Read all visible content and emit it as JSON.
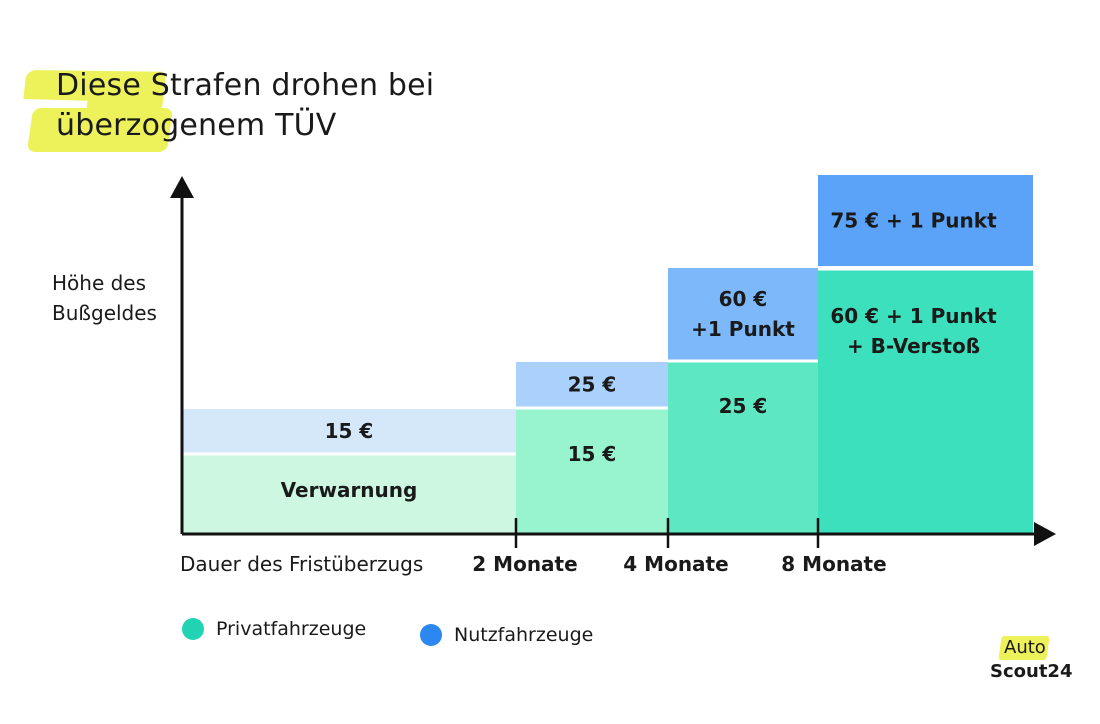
{
  "title": {
    "line1": "Diese Strafen drohen bei",
    "line2": "überzogenem TÜV"
  },
  "chart_data": {
    "type": "bar",
    "ylabel": "Höhe des Bußgeldes",
    "xlabel": "Dauer des Fristüberzugs",
    "x_ticks": [
      "2 Monate",
      "4 Monate",
      "8 Monate"
    ],
    "segments": [
      {
        "range": "0-2",
        "private": "Verwarnung",
        "commercial": "15 €"
      },
      {
        "range": "2-4",
        "private": "15 €",
        "commercial": "25 €"
      },
      {
        "range": "4-8",
        "private": "25 €",
        "commercial": [
          "60 €",
          "+1 Punkt"
        ]
      },
      {
        "range": "8+",
        "private": [
          "60 € + 1 Punkt",
          "+ B-Verstoß"
        ],
        "commercial": "75 € + 1 Punkt"
      }
    ],
    "series": [
      {
        "name": "Privatfahrzeuge",
        "colors": [
          "#cdf7e1",
          "#98f4cf",
          "#5ee8c2",
          "#3ce0bd"
        ]
      },
      {
        "name": "Nutzfahrzeuge",
        "colors": [
          "#d5e8fa",
          "#a9d1fb",
          "#7db9fa",
          "#5aa3f8"
        ]
      }
    ]
  },
  "legend": {
    "private": {
      "label": "Privatfahrzeuge",
      "color": "#1fd3b3"
    },
    "commercial": {
      "label": "Nutzfahrzeuge",
      "color": "#2d87f0"
    }
  },
  "logo": {
    "line1": "Auto",
    "line2": "Scout24"
  }
}
